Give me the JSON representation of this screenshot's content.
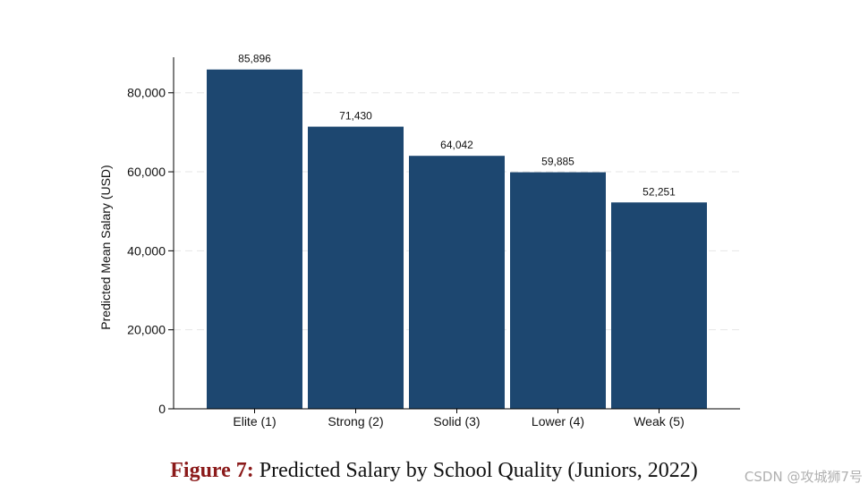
{
  "chart_data": {
    "type": "bar",
    "categories": [
      "Elite (1)",
      "Strong (2)",
      "Solid (3)",
      "Lower (4)",
      "Weak (5)"
    ],
    "values": [
      85896,
      71430,
      64042,
      59885,
      52251
    ],
    "data_labels": [
      "85,896",
      "71,430",
      "64,042",
      "59,885",
      "52,251"
    ],
    "ylabel": "Predicted Mean Salary (USD)",
    "xlabel": "",
    "ylim": [
      0,
      89000
    ],
    "yticks": [
      0,
      20000,
      40000,
      60000,
      80000
    ],
    "ytick_labels": [
      "0",
      "20,000",
      "40,000",
      "60,000",
      "80,000"
    ],
    "grid": "horizontal dashed",
    "bar_color": "#1d4770"
  },
  "caption": {
    "label": "Figure 7:",
    "text": "Predicted Salary by School Quality (Juniors, 2022)"
  },
  "watermark": "CSDN @攻城狮7号"
}
